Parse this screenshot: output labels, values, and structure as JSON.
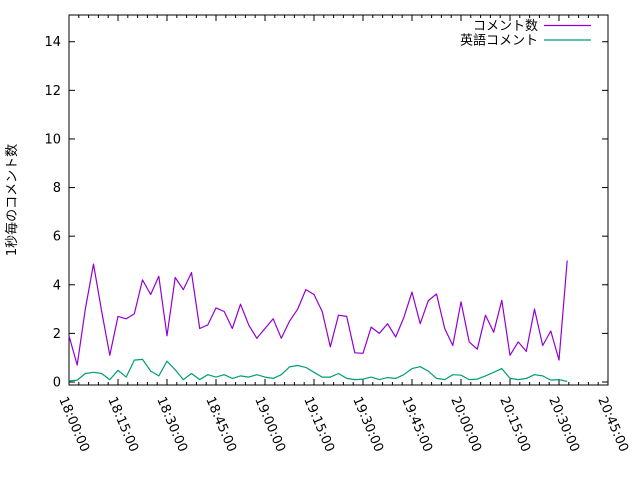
{
  "window": {
    "background": "#ffffff"
  },
  "chart_data": {
    "type": "line",
    "title": "",
    "xlabel": "",
    "ylabel": "1秒毎のコメント数",
    "grid": false,
    "legend_position": "top-right-inside",
    "axis_color": "#000000",
    "text_color": "#000000",
    "x_axis": {
      "tick_labels": [
        "18:00:00",
        "18:15:00",
        "18:30:00",
        "18:45:00",
        "19:00:00",
        "19:15:00",
        "19:30:00",
        "19:45:00",
        "20:00:00",
        "20:15:00",
        "20:30:00",
        "20:45:00"
      ],
      "range_minutes": [
        0,
        165
      ],
      "major_tick_every_minutes": 15,
      "minor_tick_every_minutes": 3,
      "label_rotation_deg": 67
    },
    "y_axis": {
      "tick_values": [
        0,
        2,
        4,
        6,
        8,
        10,
        12,
        14
      ],
      "lim": [
        0,
        15.1
      ]
    },
    "sample_start_minute": 0,
    "sample_step_minutes": 2.5,
    "series": [
      {
        "name": "コメント数",
        "color": "#9400d3",
        "values": [
          1.9,
          0.7,
          3.0,
          4.85,
          2.9,
          1.1,
          2.7,
          2.6,
          2.8,
          4.2,
          3.6,
          4.35,
          1.9,
          4.3,
          3.8,
          4.5,
          2.2,
          2.35,
          3.05,
          2.9,
          2.2,
          3.2,
          2.35,
          1.8,
          2.2,
          2.6,
          1.8,
          2.5,
          3.0,
          3.8,
          3.6,
          2.9,
          1.45,
          2.75,
          2.7,
          1.2,
          1.18,
          2.26,
          2.0,
          2.4,
          1.85,
          2.65,
          3.7,
          2.4,
          3.35,
          3.62,
          2.2,
          1.5,
          3.3,
          1.65,
          1.35,
          2.75,
          2.05,
          3.36,
          1.1,
          1.65,
          1.26,
          3.0,
          1.5,
          2.1,
          0.9,
          5.0
        ]
      },
      {
        "name": "英語コメント",
        "color": "#009e73",
        "values": [
          0.05,
          0.08,
          0.35,
          0.4,
          0.35,
          0.1,
          0.48,
          0.2,
          0.9,
          0.93,
          0.45,
          0.25,
          0.86,
          0.5,
          0.1,
          0.35,
          0.1,
          0.3,
          0.2,
          0.3,
          0.15,
          0.25,
          0.2,
          0.3,
          0.2,
          0.15,
          0.3,
          0.62,
          0.68,
          0.6,
          0.4,
          0.2,
          0.2,
          0.35,
          0.15,
          0.1,
          0.12,
          0.2,
          0.1,
          0.18,
          0.15,
          0.3,
          0.55,
          0.63,
          0.45,
          0.15,
          0.1,
          0.3,
          0.28,
          0.1,
          0.12,
          0.25,
          0.4,
          0.55,
          0.15,
          0.1,
          0.15,
          0.3,
          0.25,
          0.08,
          0.1,
          0.02
        ]
      }
    ]
  }
}
